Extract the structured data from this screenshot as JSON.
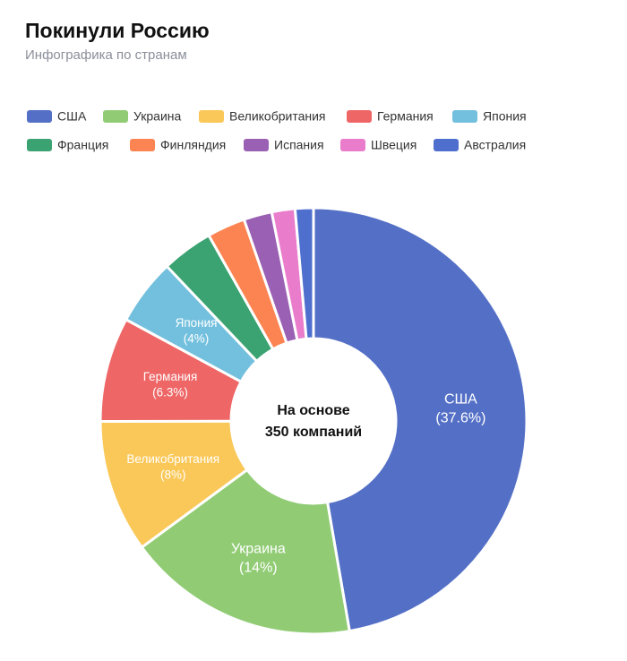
{
  "chart_data": {
    "type": "donut",
    "title": "Покинули Россию",
    "subtitle": "Инфографика по странам",
    "center_label": [
      "На основе",
      "350 компаний"
    ],
    "categories": [
      "США",
      "Украина",
      "Великобритания",
      "Германия",
      "Япония",
      "Франция",
      "Финляндия",
      "Испания",
      "Швеция",
      "Австралия"
    ],
    "values": [
      37.6,
      14,
      8,
      6.3,
      4,
      3.1,
      2.3,
      1.7,
      1.4,
      1.1
    ],
    "value_labels": [
      "(37.6%)",
      "(14%)",
      "(8%)",
      "(6.3%)",
      "(4%)",
      null,
      null,
      null,
      null,
      null
    ],
    "colors": [
      "#5470c6",
      "#91cc75",
      "#fac858",
      "#ee6666",
      "#73c0de",
      "#3ba272",
      "#fc8452",
      "#9a60b4",
      "#ea7ccc",
      "#4f6fcf"
    ],
    "legend": "top"
  }
}
